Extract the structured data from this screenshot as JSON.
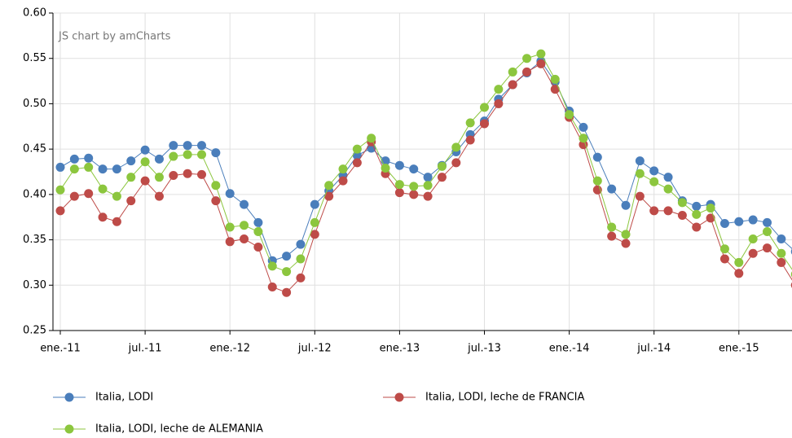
{
  "chart_data": {
    "type": "line",
    "annotation": "JS chart by amCharts",
    "categories": [
      "ene.-11",
      null,
      null,
      null,
      null,
      null,
      "jul.-11",
      null,
      null,
      null,
      null,
      null,
      "ene.-12",
      null,
      null,
      null,
      null,
      null,
      "jul.-12",
      null,
      null,
      null,
      null,
      null,
      "ene.-13",
      null,
      null,
      null,
      null,
      null,
      "jul.-13",
      null,
      null,
      null,
      null,
      null,
      "ene.-14",
      null,
      null,
      null,
      null,
      null,
      "jul.-14",
      null,
      null,
      null,
      null,
      null,
      "ene.-15",
      null,
      null,
      null,
      null
    ],
    "series": [
      {
        "name": "Italia, LODI",
        "color": "#4a7ebb",
        "values": [
          0.43,
          0.439,
          0.44,
          0.428,
          0.428,
          0.437,
          0.449,
          0.439,
          0.454,
          0.454,
          0.454,
          0.446,
          0.401,
          0.389,
          0.369,
          0.327,
          0.332,
          0.345,
          0.389,
          0.404,
          0.421,
          0.443,
          0.451,
          0.437,
          0.432,
          0.428,
          0.419,
          0.432,
          0.447,
          0.466,
          0.481,
          0.505,
          0.521,
          0.534,
          0.547,
          0.524,
          0.492,
          0.474,
          0.441,
          0.406,
          0.388,
          0.437,
          0.426,
          0.419,
          0.393,
          0.387,
          0.389,
          0.368,
          0.37,
          0.372,
          0.369,
          0.351,
          0.337
        ]
      },
      {
        "name": "Italia, LODI, leche de FRANCIA",
        "color": "#be4b48",
        "values": [
          0.382,
          0.398,
          0.401,
          0.375,
          0.37,
          0.393,
          0.415,
          0.398,
          0.421,
          0.423,
          0.422,
          0.393,
          0.348,
          0.351,
          0.342,
          0.298,
          0.292,
          0.308,
          0.356,
          0.398,
          0.415,
          0.435,
          0.458,
          0.423,
          0.402,
          0.4,
          0.398,
          0.419,
          0.435,
          0.46,
          0.478,
          0.5,
          0.521,
          0.535,
          0.544,
          0.516,
          0.485,
          0.455,
          0.405,
          0.354,
          0.346,
          0.398,
          0.382,
          0.382,
          0.377,
          0.364,
          0.374,
          0.329,
          0.313,
          0.335,
          0.341,
          0.325,
          0.3
        ]
      },
      {
        "name": "Italia, LODI, leche de ALEMANIA",
        "color": "#8cc63e",
        "values": [
          0.405,
          0.428,
          0.43,
          0.406,
          0.398,
          0.419,
          0.436,
          0.419,
          0.442,
          0.444,
          0.444,
          0.41,
          0.364,
          0.366,
          0.359,
          0.321,
          0.315,
          0.329,
          0.369,
          0.41,
          0.428,
          0.45,
          0.462,
          0.429,
          0.411,
          0.409,
          0.41,
          0.431,
          0.452,
          0.479,
          0.496,
          0.516,
          0.535,
          0.55,
          0.555,
          0.527,
          0.488,
          0.462,
          0.415,
          0.364,
          0.356,
          0.423,
          0.414,
          0.406,
          0.391,
          0.378,
          0.385,
          0.34,
          0.325,
          0.351,
          0.359,
          0.335,
          0.312
        ]
      }
    ],
    "ylim": [
      0.25,
      0.6
    ],
    "yticks": [
      0.25,
      {
        "value": 0.3,
        "label": "0.30"
      },
      0.35,
      {
        "value": 0.4,
        "label": "0.40"
      },
      0.45,
      {
        "value": 0.5,
        "label": "0.50"
      },
      0.55,
      {
        "value": 0.6,
        "label": "0.60"
      }
    ],
    "grid": true,
    "legend": "bottom"
  }
}
